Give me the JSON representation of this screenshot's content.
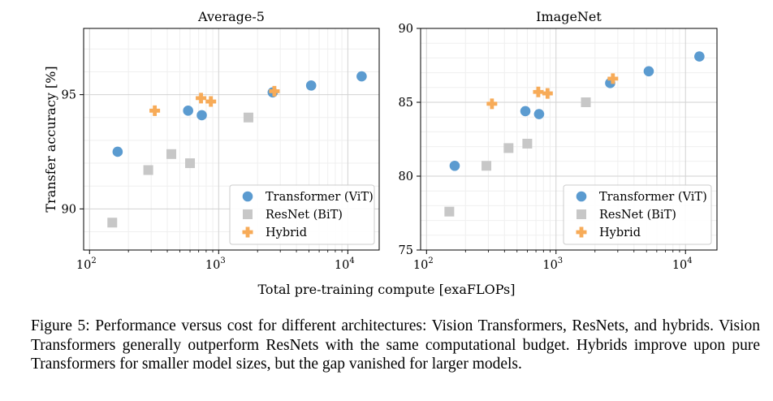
{
  "chart_data": [
    {
      "type": "scatter",
      "title": "Average-5",
      "ylabel": "Transfer accuracy [%]",
      "xlabel": "",
      "xscale": "log",
      "xlim": [
        90,
        17500
      ],
      "ylim": [
        88.2,
        97.9
      ],
      "yticks": [
        90,
        95
      ],
      "ytick_labels": [
        "90",
        "95"
      ],
      "xticks": [
        100,
        1000,
        10000
      ],
      "xtick_labels": [
        {
          "base": "10",
          "exp": "2"
        },
        {
          "base": "10",
          "exp": "3"
        },
        {
          "base": "10",
          "exp": "4"
        }
      ],
      "grid": true,
      "legend": "lower-right",
      "series": [
        {
          "name": "Transformer (ViT)",
          "marker": "circle",
          "color": "#5b9bd0",
          "points": [
            [
              165,
              92.5
            ],
            [
              580,
              94.3
            ],
            [
              740,
              94.1
            ],
            [
              2620,
              95.1
            ],
            [
              5200,
              95.4
            ],
            [
              12800,
              95.8
            ]
          ]
        },
        {
          "name": "ResNet (BiT)",
          "marker": "square",
          "color": "#c7c7c7",
          "points": [
            [
              150,
              89.4
            ],
            [
              285,
              91.7
            ],
            [
              430,
              92.4
            ],
            [
              600,
              92.0
            ],
            [
              1700,
              94.0
            ]
          ]
        },
        {
          "name": "Hybrid",
          "marker": "plus",
          "color": "#f7ab58",
          "points": [
            [
              320,
              94.3
            ],
            [
              730,
              94.85
            ],
            [
              870,
              94.7
            ],
            [
              2700,
              95.15
            ]
          ]
        }
      ]
    },
    {
      "type": "scatter",
      "title": "ImageNet",
      "ylabel": "",
      "xlabel": "",
      "xscale": "log",
      "xlim": [
        90,
        17500
      ],
      "ylim": [
        75,
        90
      ],
      "yticks": [
        75,
        80,
        85,
        90
      ],
      "ytick_labels": [
        "75",
        "80",
        "85",
        "90"
      ],
      "xticks": [
        100,
        1000,
        10000
      ],
      "xtick_labels": [
        {
          "base": "10",
          "exp": "2"
        },
        {
          "base": "10",
          "exp": "3"
        },
        {
          "base": "10",
          "exp": "4"
        }
      ],
      "grid": true,
      "legend": "lower-right",
      "series": [
        {
          "name": "Transformer (ViT)",
          "marker": "circle",
          "color": "#5b9bd0",
          "points": [
            [
              165,
              80.7
            ],
            [
              580,
              84.4
            ],
            [
              740,
              84.2
            ],
            [
              2620,
              86.3
            ],
            [
              5200,
              87.1
            ],
            [
              12800,
              88.1
            ]
          ]
        },
        {
          "name": "ResNet (BiT)",
          "marker": "square",
          "color": "#c7c7c7",
          "points": [
            [
              150,
              77.6
            ],
            [
              290,
              80.7
            ],
            [
              430,
              81.9
            ],
            [
              600,
              82.2
            ],
            [
              1700,
              85.0
            ]
          ]
        },
        {
          "name": "Hybrid",
          "marker": "plus",
          "color": "#f7ab58",
          "points": [
            [
              320,
              84.9
            ],
            [
              730,
              85.7
            ],
            [
              860,
              85.6
            ],
            [
              2750,
              86.6
            ]
          ]
        }
      ]
    }
  ],
  "shared_xlabel": "Total pre-training compute [exaFLOPs]",
  "caption": "Figure 5: Performance versus cost for different architectures: Vision Transformers, ResNets, and hybrids. Vision Transformers generally outperform ResNets with the same computational budget. Hybrids improve upon pure Transformers for smaller model sizes, but the gap vanished for larger models."
}
